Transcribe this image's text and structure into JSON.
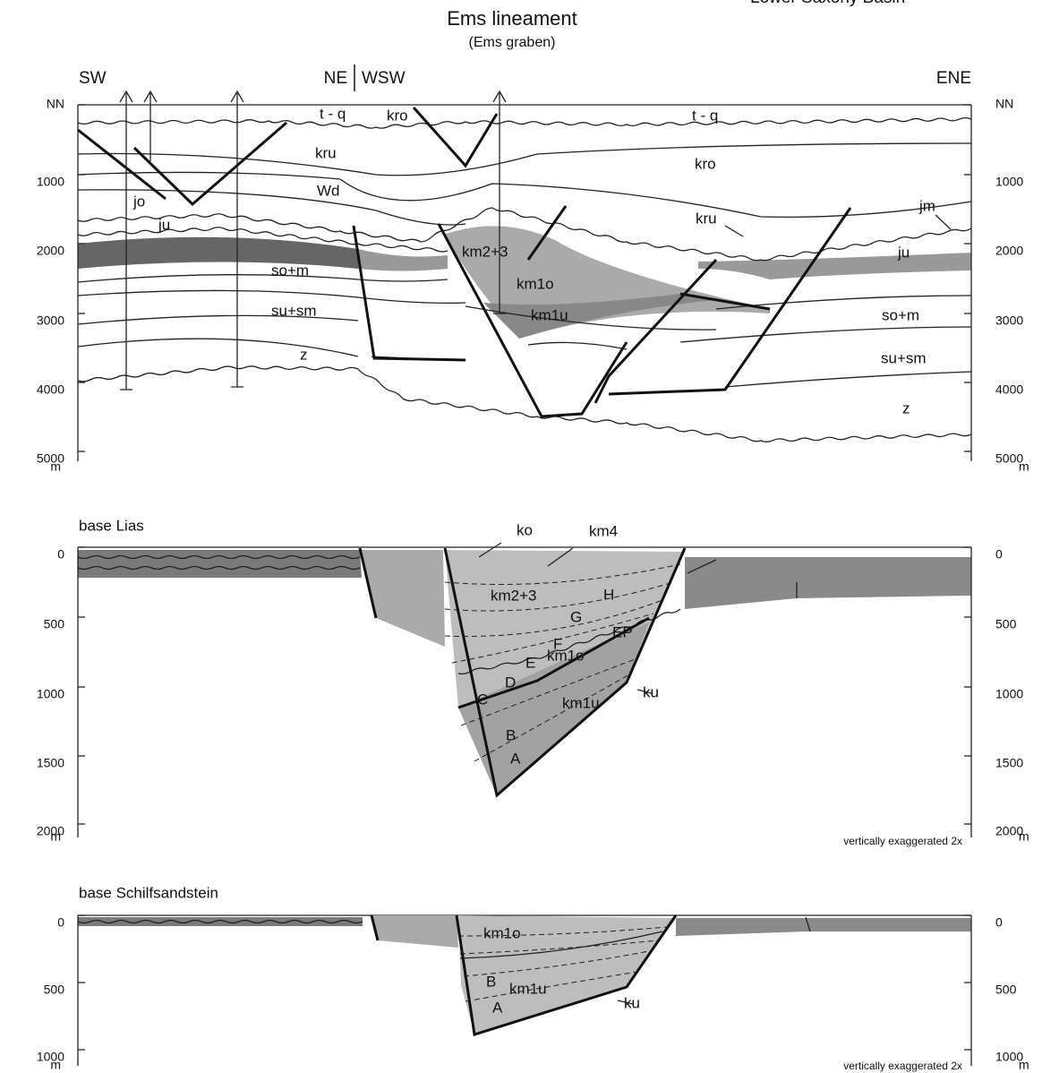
{
  "header": {
    "title": "Ems lineament",
    "subtitle": "(Ems graben)",
    "corner_label": "Lower Saxony Basin"
  },
  "panels": [
    {
      "orientation": [
        "SW",
        "NE",
        "WSW",
        "ENE"
      ],
      "axis_left": [
        "NN",
        "1000",
        "2000",
        "3000",
        "4000",
        "5000",
        "m"
      ],
      "axis_right": [
        "NN",
        "1000",
        "2000",
        "3000",
        "4000",
        "5000",
        "m"
      ],
      "units": [
        "t - q",
        "kro",
        "kru",
        "Wd",
        "jo",
        "ju",
        "so+m",
        "su+sm",
        "z",
        "t - q",
        "kro",
        "kru",
        "jm",
        "ju",
        "km2+3",
        "km1o",
        "km1u",
        "so+m",
        "su+sm",
        "z"
      ]
    },
    {
      "title": "base Lias",
      "axis_left": [
        "0",
        "500",
        "1000",
        "1500",
        "2000",
        "m"
      ],
      "axis_right": [
        "0",
        "500",
        "1000",
        "1500",
        "2000",
        "m"
      ],
      "units": [
        "ko",
        "km4",
        "km2+3",
        "H",
        "G",
        "F",
        "E",
        "km1o",
        "D",
        "C",
        "EP",
        "km1u",
        "ku",
        "B",
        "A"
      ],
      "note": "vertically exaggerated 2x"
    },
    {
      "title": "base Schilfsandstein",
      "axis_left": [
        "0",
        "500",
        "1000",
        "m"
      ],
      "axis_right": [
        "0",
        "500",
        "1000",
        "m"
      ],
      "units": [
        "km1o",
        "B",
        "km1u",
        "A",
        "ku"
      ],
      "note": "vertically exaggerated 2x"
    }
  ]
}
